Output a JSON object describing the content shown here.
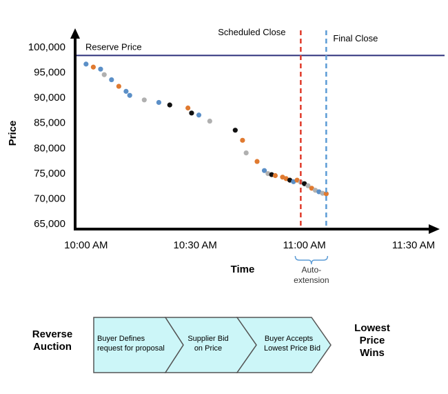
{
  "chart_data": {
    "type": "scatter",
    "xlabel": "Time",
    "ylabel": "Price",
    "x_ticks": [
      "10:00 AM",
      "10:30 AM",
      "11:00 AM",
      "11:30 AM"
    ],
    "y_ticks": [
      "100,000",
      "95,000",
      "90,000",
      "85,000",
      "80,000",
      "75,000",
      "70,000",
      "65,000"
    ],
    "ylim": [
      65000,
      100000
    ],
    "xlim": [
      "9:57 AM",
      "11:37 AM"
    ],
    "grid": false,
    "legend": "none",
    "reserve_price": {
      "label": "Reserve Price",
      "value": 98300
    },
    "scheduled_close": {
      "label": "Scheduled Close",
      "time": "10:59 AM"
    },
    "final_close": {
      "label": "Final Close",
      "time": "11:06 AM"
    },
    "extension": {
      "label": "Auto-extension"
    },
    "series_colors": {
      "blue": "#5b8fc7",
      "orange": "#e07a30",
      "gray": "#b0b0b0",
      "black": "#111111"
    },
    "points": [
      {
        "x": "10:00",
        "y": 96600,
        "c": "blue"
      },
      {
        "x": "10:02",
        "y": 96000,
        "c": "orange"
      },
      {
        "x": "10:04",
        "y": 95600,
        "c": "blue"
      },
      {
        "x": "10:05",
        "y": 94500,
        "c": "gray"
      },
      {
        "x": "10:07",
        "y": 93500,
        "c": "blue"
      },
      {
        "x": "10:09",
        "y": 92200,
        "c": "orange"
      },
      {
        "x": "10:11",
        "y": 91200,
        "c": "blue"
      },
      {
        "x": "10:12",
        "y": 90400,
        "c": "blue"
      },
      {
        "x": "10:16",
        "y": 89500,
        "c": "gray"
      },
      {
        "x": "10:20",
        "y": 89000,
        "c": "blue"
      },
      {
        "x": "10:23",
        "y": 88500,
        "c": "black"
      },
      {
        "x": "10:28",
        "y": 87900,
        "c": "orange"
      },
      {
        "x": "10:29",
        "y": 86900,
        "c": "black"
      },
      {
        "x": "10:31",
        "y": 86500,
        "c": "blue"
      },
      {
        "x": "10:34",
        "y": 85300,
        "c": "gray"
      },
      {
        "x": "10:41",
        "y": 83500,
        "c": "black"
      },
      {
        "x": "10:43",
        "y": 81500,
        "c": "orange"
      },
      {
        "x": "10:44",
        "y": 79000,
        "c": "gray"
      },
      {
        "x": "10:47",
        "y": 77300,
        "c": "orange"
      },
      {
        "x": "10:49",
        "y": 75500,
        "c": "blue"
      },
      {
        "x": "10:50",
        "y": 74900,
        "c": "gray"
      },
      {
        "x": "10:51",
        "y": 74700,
        "c": "black"
      },
      {
        "x": "10:52",
        "y": 74500,
        "c": "orange"
      },
      {
        "x": "10:54",
        "y": 74200,
        "c": "orange"
      },
      {
        "x": "10:55",
        "y": 73900,
        "c": "orange"
      },
      {
        "x": "10:56",
        "y": 73600,
        "c": "black"
      },
      {
        "x": "10:57",
        "y": 73300,
        "c": "blue"
      },
      {
        "x": "10:58",
        "y": 73600,
        "c": "orange"
      },
      {
        "x": "10:59",
        "y": 73200,
        "c": "gray"
      },
      {
        "x": "11:00",
        "y": 72900,
        "c": "black"
      },
      {
        "x": "11:01",
        "y": 72500,
        "c": "gray"
      },
      {
        "x": "11:02",
        "y": 72000,
        "c": "orange"
      },
      {
        "x": "11:03",
        "y": 71600,
        "c": "gray"
      },
      {
        "x": "11:04",
        "y": 71300,
        "c": "blue"
      },
      {
        "x": "11:05",
        "y": 71000,
        "c": "gray"
      },
      {
        "x": "11:06",
        "y": 70900,
        "c": "orange"
      }
    ]
  },
  "process": {
    "left_label": [
      "Reverse",
      "Auction"
    ],
    "steps": [
      [
        "Buyer Defines",
        "request for proposal"
      ],
      [
        "Supplier Bid",
        "on Price"
      ],
      [
        "Buyer Accepts",
        "Lowest Price Bid"
      ]
    ],
    "right_label": [
      "Lowest",
      "Price",
      "Wins"
    ],
    "step_fill": "#ccf6f8"
  }
}
